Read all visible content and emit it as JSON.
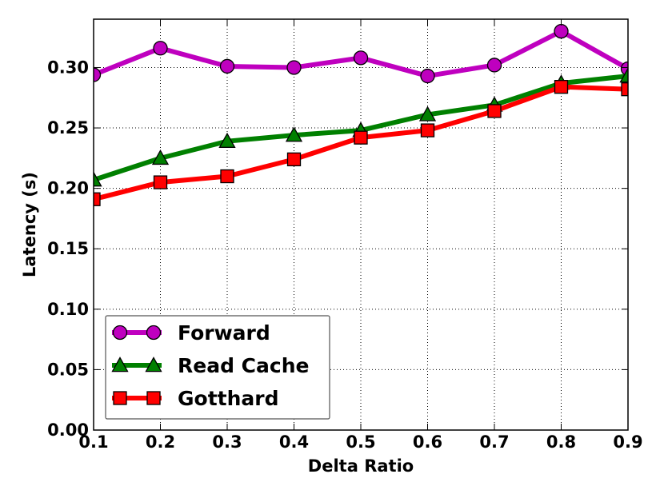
{
  "chart_data": {
    "type": "line",
    "xlabel": "Delta Ratio",
    "ylabel": "Latency (s)",
    "xlim": [
      0.1,
      0.9
    ],
    "ylim": [
      0.0,
      0.34
    ],
    "x": [
      0.1,
      0.2,
      0.3,
      0.4,
      0.5,
      0.6,
      0.7,
      0.8,
      0.9
    ],
    "x_tick_labels": [
      "0.1",
      "0.2",
      "0.3",
      "0.4",
      "0.5",
      "0.6",
      "0.7",
      "0.8",
      "0.9"
    ],
    "y_ticks": [
      0.0,
      0.05,
      0.1,
      0.15,
      0.2,
      0.25,
      0.3
    ],
    "y_tick_labels": [
      "0.00",
      "0.05",
      "0.10",
      "0.15",
      "0.20",
      "0.25",
      "0.30"
    ],
    "grid": true,
    "legend_position": "lower-left",
    "series": [
      {
        "name": "Forward",
        "marker": "circle",
        "color": "#bf00bf",
        "values": [
          0.294,
          0.316,
          0.301,
          0.3,
          0.308,
          0.293,
          0.302,
          0.33,
          0.299
        ]
      },
      {
        "name": "Read Cache",
        "marker": "triangle",
        "color": "#008000",
        "values": [
          0.207,
          0.225,
          0.239,
          0.244,
          0.248,
          0.261,
          0.269,
          0.287,
          0.293
        ]
      },
      {
        "name": "Gotthard",
        "marker": "square",
        "color": "#ff0000",
        "values": [
          0.191,
          0.205,
          0.21,
          0.224,
          0.242,
          0.248,
          0.264,
          0.284,
          0.282
        ]
      }
    ]
  }
}
